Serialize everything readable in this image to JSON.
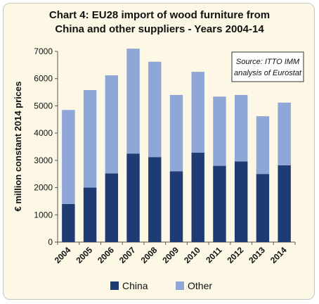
{
  "chart_data": {
    "type": "bar",
    "stacked": true,
    "title_line1": "Chart 4: EU28 import of wood furniture from",
    "title_line2": "China and other suppliers - Years 2004-14",
    "ylabel": "€ million constant 2014 prices",
    "xlabel": "",
    "ylim": [
      0,
      7000
    ],
    "yticks": [
      0,
      1000,
      2000,
      3000,
      4000,
      5000,
      6000,
      7000
    ],
    "categories": [
      "2004",
      "2005",
      "2006",
      "2007",
      "2008",
      "2009",
      "2010",
      "2011",
      "2012",
      "2013",
      "2014"
    ],
    "series": [
      {
        "name": "China",
        "color": "#1f3b73",
        "values": [
          1400,
          2000,
          2520,
          3250,
          3120,
          2600,
          3280,
          2800,
          2960,
          2500,
          2820
        ]
      },
      {
        "name": "Other",
        "color": "#8ea7d6",
        "values": [
          3450,
          3580,
          3600,
          3850,
          3500,
          2800,
          2970,
          2540,
          2440,
          2120,
          2300
        ]
      }
    ],
    "legend_position": "bottom",
    "grid": false,
    "annotation_line1": "Source: ITTO IMM",
    "annotation_line2": "analysis of Eurostat"
  }
}
